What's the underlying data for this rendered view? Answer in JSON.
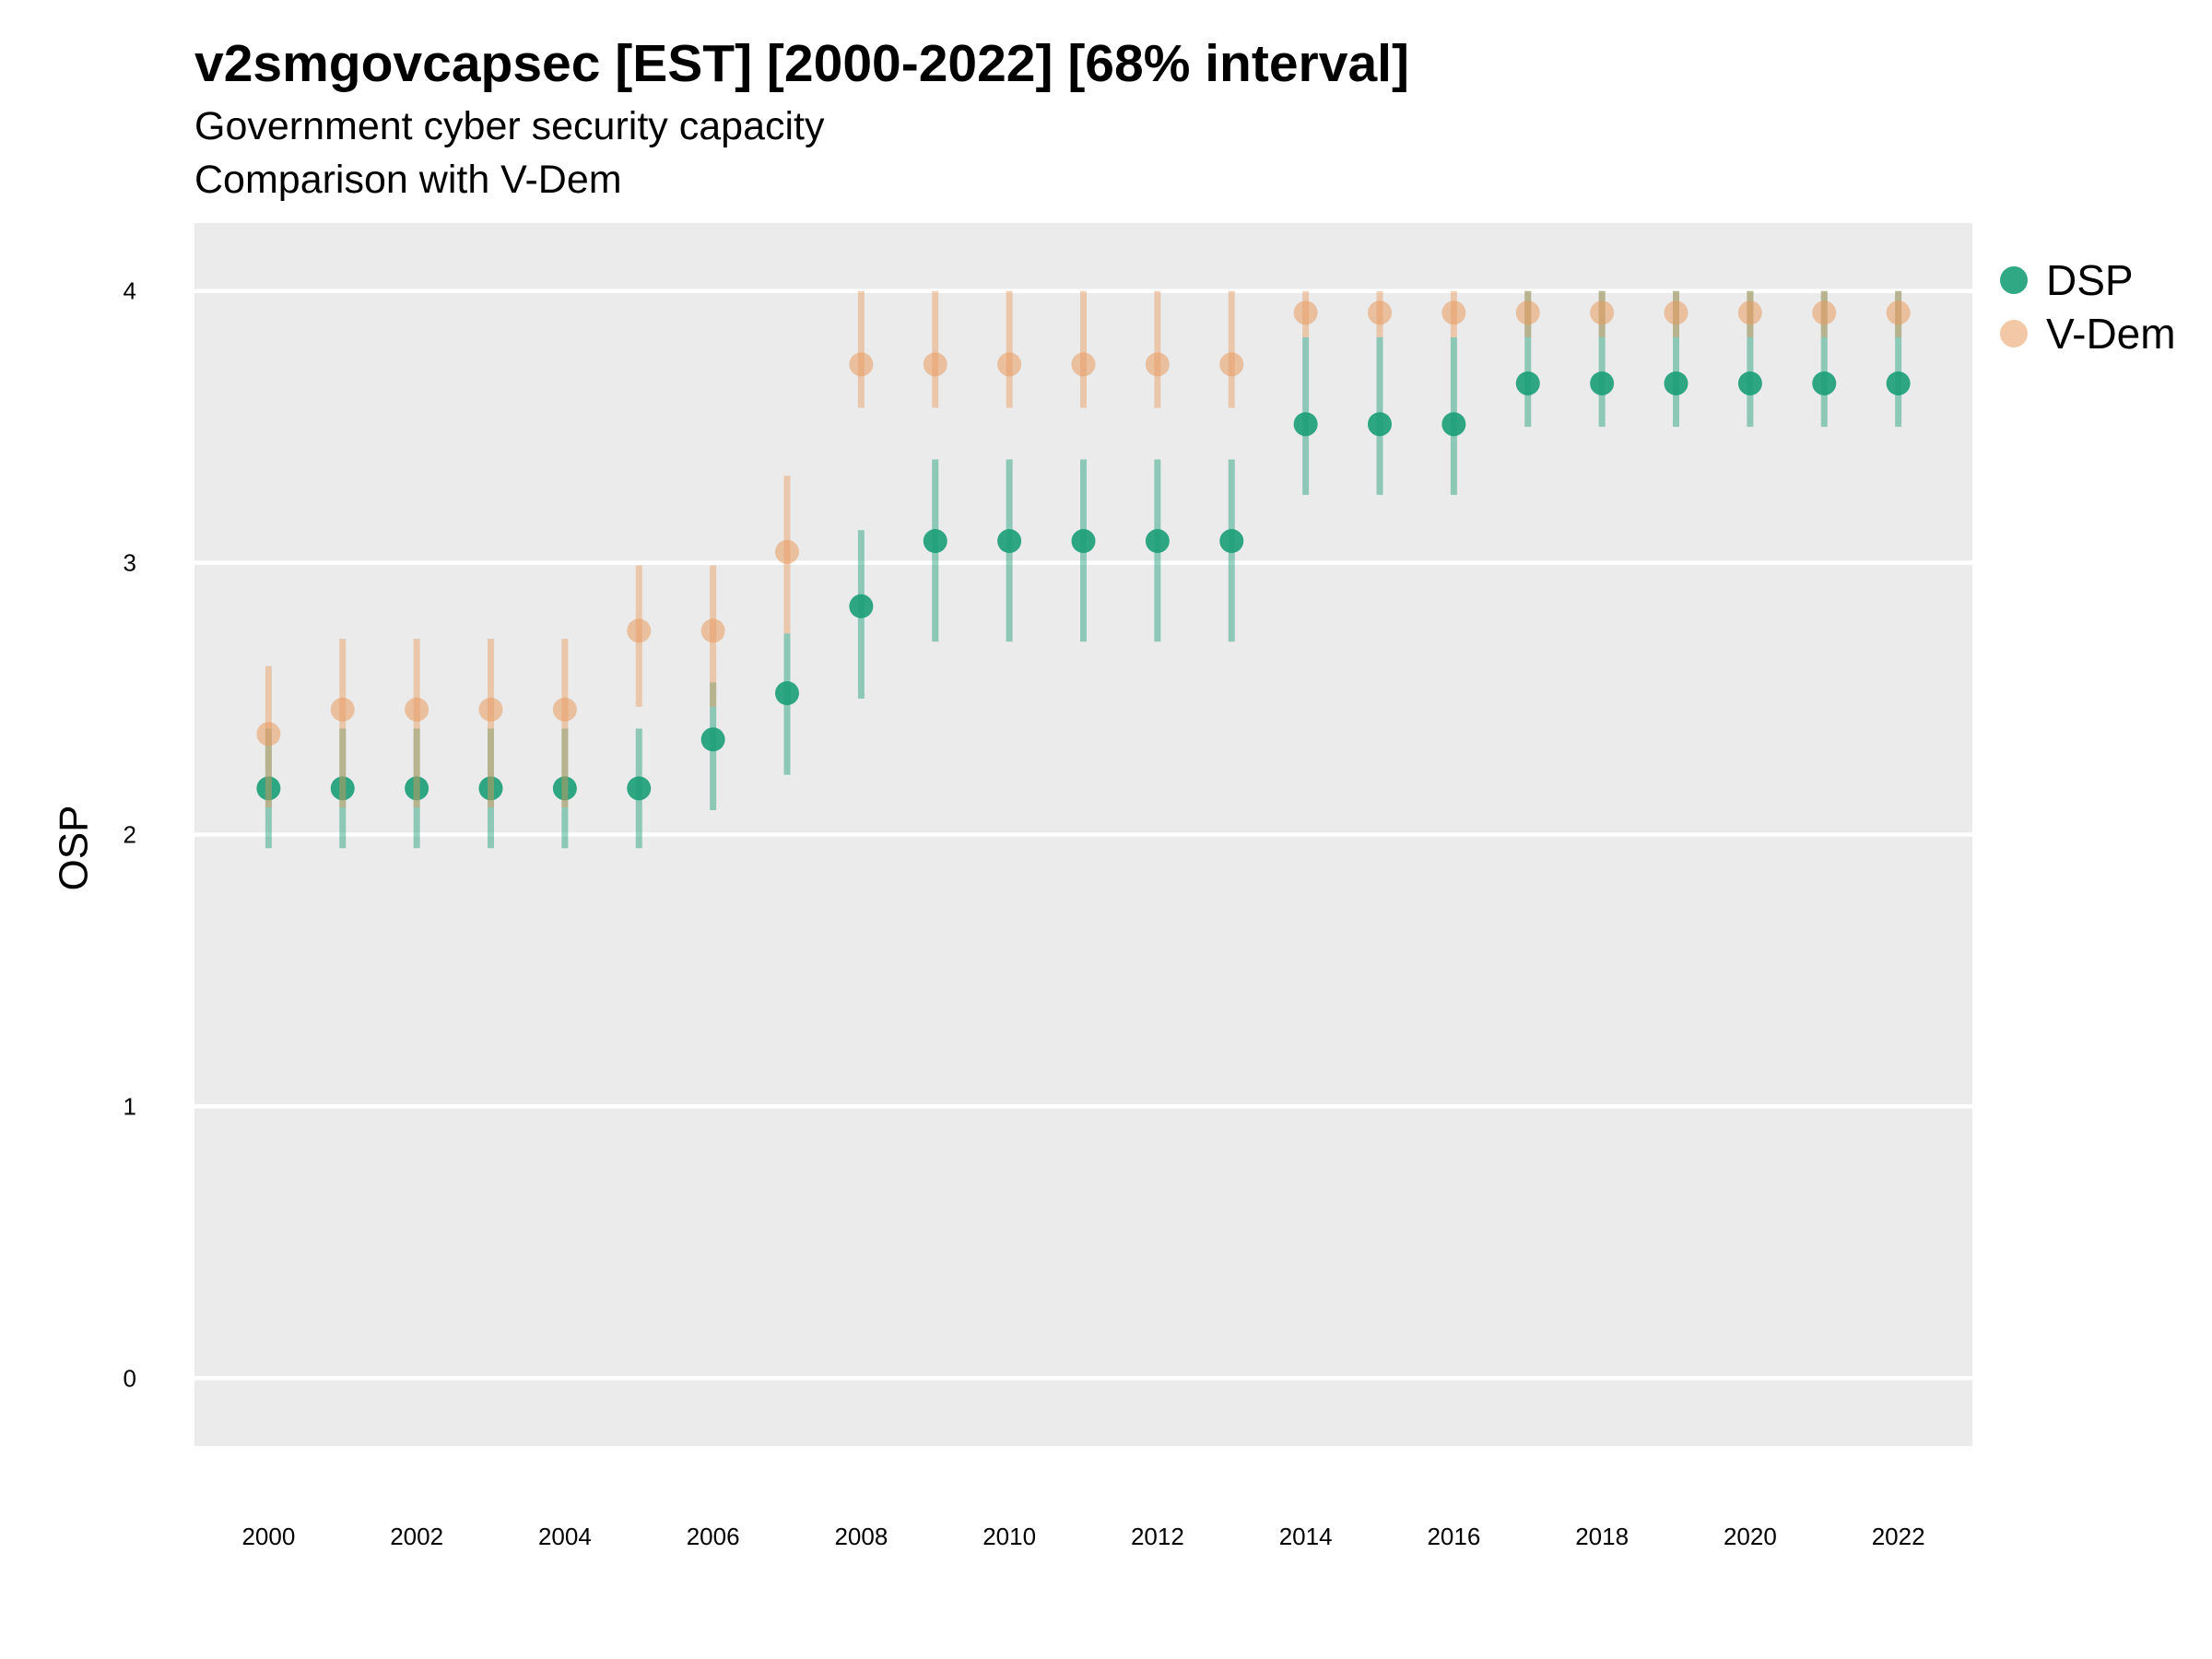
{
  "title": "v2smgovcapsec [EST] [2000-2022] [68% interval]",
  "subtitle": "Government cyber security capacity",
  "caption": "Comparison with V-Dem",
  "chart_data": {
    "type": "scatter",
    "ylabel": "OSP",
    "xlabel": "",
    "xlim": [
      1999,
      2023
    ],
    "ylim": [
      -0.25,
      4.25
    ],
    "x_ticks": [
      2000,
      2002,
      2004,
      2006,
      2008,
      2010,
      2012,
      2014,
      2016,
      2018,
      2020,
      2022
    ],
    "y_ticks": [
      0,
      1,
      2,
      3,
      4
    ],
    "grid": true,
    "legend_position": "right",
    "x": [
      2000,
      2001,
      2002,
      2003,
      2004,
      2005,
      2006,
      2007,
      2008,
      2009,
      2010,
      2011,
      2012,
      2013,
      2014,
      2015,
      2016,
      2017,
      2018,
      2019,
      2020,
      2021,
      2022
    ],
    "series": [
      {
        "name": "DSP",
        "color": "#1b9e77",
        "values": [
          2.17,
          2.17,
          2.17,
          2.17,
          2.17,
          2.17,
          2.35,
          2.52,
          2.84,
          3.08,
          3.08,
          3.08,
          3.08,
          3.08,
          3.51,
          3.51,
          3.51,
          3.66,
          3.66,
          3.66,
          3.66,
          3.66,
          3.66
        ],
        "lower": [
          1.95,
          1.95,
          1.95,
          1.95,
          1.95,
          1.95,
          2.09,
          2.22,
          2.5,
          2.71,
          2.71,
          2.71,
          2.71,
          2.71,
          3.25,
          3.25,
          3.25,
          3.5,
          3.5,
          3.5,
          3.5,
          3.5,
          3.5
        ],
        "upper": [
          2.39,
          2.39,
          2.39,
          2.39,
          2.39,
          2.39,
          2.56,
          2.74,
          3.12,
          3.38,
          3.38,
          3.38,
          3.38,
          3.38,
          3.83,
          3.83,
          3.83,
          4.0,
          4.0,
          4.0,
          4.0,
          4.0,
          4.0
        ]
      },
      {
        "name": "V-Dem",
        "color": "#e89a5e",
        "values": [
          2.37,
          2.46,
          2.46,
          2.46,
          2.46,
          2.75,
          2.75,
          3.04,
          3.73,
          3.73,
          3.73,
          3.73,
          3.73,
          3.73,
          3.92,
          3.92,
          3.92,
          3.92,
          3.92,
          3.92,
          3.92,
          3.92,
          3.92
        ],
        "lower": [
          2.1,
          2.1,
          2.1,
          2.1,
          2.1,
          2.47,
          2.47,
          2.74,
          3.57,
          3.57,
          3.57,
          3.57,
          3.57,
          3.57,
          3.83,
          3.83,
          3.83,
          3.83,
          3.83,
          3.83,
          3.83,
          3.83,
          3.83
        ],
        "upper": [
          2.62,
          2.72,
          2.72,
          2.72,
          2.72,
          2.99,
          2.99,
          3.32,
          4.0,
          4.0,
          4.0,
          4.0,
          4.0,
          4.0,
          4.0,
          4.0,
          4.0,
          4.0,
          4.0,
          4.0,
          4.0,
          4.0,
          4.0
        ]
      }
    ]
  }
}
